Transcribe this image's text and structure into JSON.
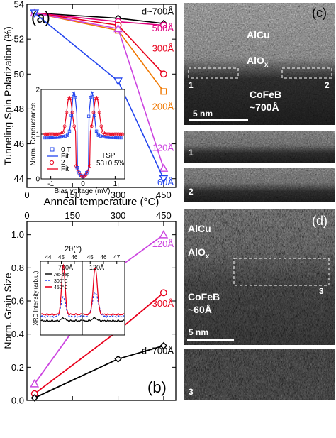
{
  "chart_data": [
    {
      "type": "line",
      "panel": "(a)",
      "xlabel": "Anneal temperature (°C)",
      "ylabel": "Tunneling Spin Polarization (%)",
      "xlim": [
        0,
        490
      ],
      "ylim": [
        43.5,
        54
      ],
      "xticks": [
        "0",
        "150",
        "300",
        "450"
      ],
      "yticks": [
        "44",
        "46",
        "48",
        "50",
        "52",
        "54"
      ],
      "series": [
        {
          "name": "d~700Å",
          "color": "#000000",
          "marker": "diamond",
          "x": [
            25,
            300,
            450
          ],
          "y": [
            53.5,
            53.2,
            52.9
          ]
        },
        {
          "name": "500Å",
          "color": "#e0007f",
          "marker": "circle",
          "x": [
            25,
            300,
            450
          ],
          "y": [
            53.5,
            53.0,
            52.8
          ]
        },
        {
          "name": "300Å",
          "color": "#e8001c",
          "marker": "circle",
          "x": [
            25,
            300,
            450
          ],
          "y": [
            53.5,
            52.8,
            50.0
          ]
        },
        {
          "name": "200Å",
          "color": "#f07800",
          "marker": "square",
          "x": [
            25,
            300,
            450
          ],
          "y": [
            53.5,
            52.5,
            49.0
          ]
        },
        {
          "name": "120Å",
          "color": "#cc44e0",
          "marker": "triangle-up",
          "x": [
            25,
            300,
            450
          ],
          "y": [
            53.5,
            52.6,
            44.6
          ]
        },
        {
          "name": "60Å",
          "color": "#2244ee",
          "marker": "triangle-down",
          "x": [
            25,
            300,
            450
          ],
          "y": [
            53.5,
            49.6,
            44.0
          ]
        }
      ],
      "inset": {
        "type": "scatter",
        "xlabel": "Bias voltage (mV)",
        "ylabel": "Norm. Conductance",
        "xlim": [
          -1.3,
          1.3
        ],
        "ylim": [
          0,
          2
        ],
        "xticks": [
          "-1",
          "0",
          "1"
        ],
        "yticks": [
          "0",
          "1",
          "2"
        ],
        "legend": [
          "0 T",
          "Fit",
          "2T",
          "Fit"
        ],
        "annotation": "TSP",
        "annotation_value": "53±0.5%",
        "series": [
          {
            "name": "0 T",
            "color": "#2244ee",
            "marker": "square"
          },
          {
            "name": "Fit",
            "color": "#2244ee",
            "marker": "line"
          },
          {
            "name": "2T",
            "color": "#e8001c",
            "marker": "circle"
          },
          {
            "name": "Fit",
            "color": "#e8001c",
            "marker": "line"
          }
        ]
      }
    },
    {
      "type": "line",
      "panel": "(b)",
      "xlabel": "",
      "ylabel": "Norm. Grain Size",
      "xlim": [
        0,
        490
      ],
      "ylim": [
        0,
        1.08
      ],
      "xticks": [
        "0",
        "150",
        "300",
        "450"
      ],
      "yticks": [
        "0.0",
        "0.2",
        "0.4",
        "0.6",
        "0.8",
        "1.0"
      ],
      "series": [
        {
          "name": "120Å",
          "color": "#cc44e0",
          "marker": "triangle-up",
          "x": [
            25,
            300,
            450
          ],
          "y": [
            0.1,
            0.8,
            1.0
          ]
        },
        {
          "name": "300Å",
          "color": "#e8001c",
          "marker": "circle",
          "x": [
            25,
            300,
            450
          ],
          "y": [
            0.04,
            0.42,
            0.65
          ]
        },
        {
          "name": "d~700Å",
          "color": "#000000",
          "marker": "diamond",
          "x": [
            25,
            300,
            450
          ],
          "y": [
            0.015,
            0.25,
            0.33
          ]
        }
      ],
      "inset": {
        "type": "line",
        "xlabel": "2θ(°)",
        "ylabel": "XRD Intensity (arb.u.)",
        "xticks_left": [
          "44",
          "45",
          "46"
        ],
        "xticks_right": [
          "45",
          "46",
          "47"
        ],
        "panels": [
          "700Å",
          "120Å"
        ],
        "legend": [
          "As-dep",
          "300°C",
          "450°C"
        ],
        "series": [
          {
            "name": "As-dep",
            "color": "#000000",
            "dash": "solid"
          },
          {
            "name": "300°C",
            "color": "#2244ee",
            "dash": "dashed"
          },
          {
            "name": "450°C",
            "color": "#e8001c",
            "dash": "solid"
          }
        ]
      }
    }
  ],
  "tem": {
    "c": {
      "label": "(c)",
      "alcu": "AlCu",
      "alox": "AlO",
      "alox_sub": "x",
      "cofeb": "CoFeB",
      "cofeb_d": "~700Å",
      "box1": "1",
      "box2": "2",
      "scale": "5 nm"
    },
    "crop1": "1",
    "crop2": "2",
    "d": {
      "label": "(d)",
      "alcu": "AlCu",
      "alox": "AlO",
      "alox_sub": "x",
      "cofeb": "CoFeB",
      "cofeb_d": "~60Å",
      "box3": "3",
      "scale": "5 nm"
    },
    "crop3": "3"
  }
}
